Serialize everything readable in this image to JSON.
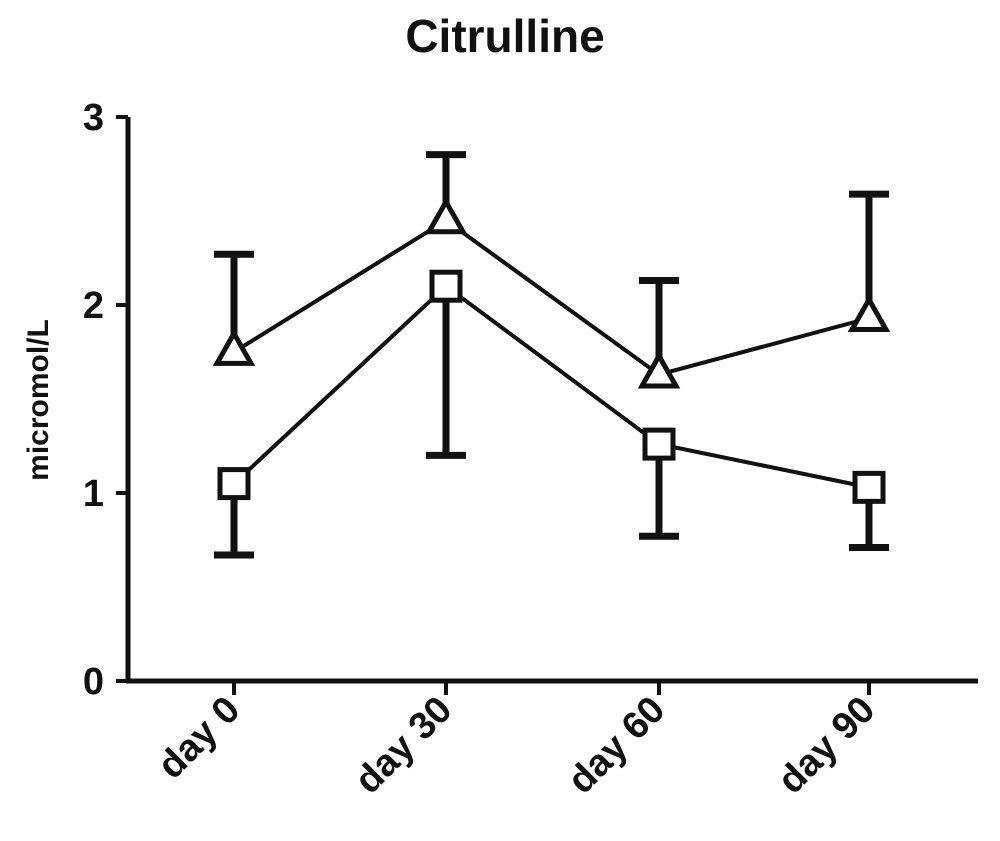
{
  "chart_data": {
    "type": "line",
    "title": "Citrulline",
    "xlabel": "",
    "ylabel": "micromol/L",
    "categories": [
      "day 0",
      "day 30",
      "day 60",
      "day 90"
    ],
    "ylim": [
      0,
      3
    ],
    "yticks": [
      0,
      1,
      2,
      3
    ],
    "grid": false,
    "legend": "none",
    "series": [
      {
        "marker": "triangle",
        "values": [
          1.75,
          2.45,
          1.63,
          1.93
        ],
        "error_upper": [
          2.27,
          2.8,
          2.13,
          2.59
        ],
        "error_lower": [
          null,
          null,
          null,
          null
        ]
      },
      {
        "marker": "square",
        "values": [
          1.05,
          2.1,
          1.26,
          1.03
        ],
        "error_upper": [
          null,
          null,
          null,
          null
        ],
        "error_lower": [
          0.67,
          1.2,
          0.77,
          0.71
        ]
      }
    ]
  }
}
